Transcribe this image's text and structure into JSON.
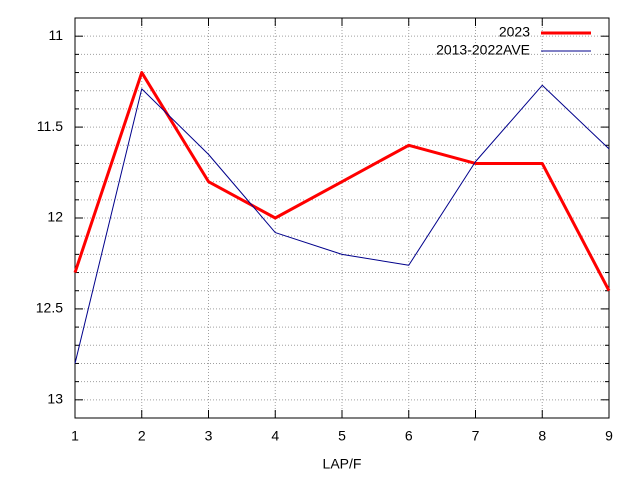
{
  "chart_data": {
    "type": "line",
    "xlabel": "LAP/F",
    "x": [
      1,
      2,
      3,
      4,
      5,
      6,
      7,
      8,
      9
    ],
    "series": [
      {
        "name": "2023",
        "color": "#ff0000",
        "values": [
          12.3,
          11.2,
          11.8,
          12.0,
          11.8,
          11.6,
          11.7,
          11.7,
          12.4
        ]
      },
      {
        "name": "2013-2022AVE",
        "color": "#00008b",
        "values": [
          12.8,
          11.29,
          11.65,
          12.08,
          12.2,
          12.26,
          11.69,
          11.27,
          11.62
        ]
      }
    ],
    "xlim": [
      1,
      9
    ],
    "xticks": [
      1,
      2,
      3,
      4,
      5,
      6,
      7,
      8,
      9
    ],
    "ylim": [
      13.1,
      10.9
    ],
    "yticks": [
      11,
      11.5,
      12,
      12.5,
      13
    ],
    "yminorticks": [
      11.1,
      11.2,
      11.3,
      11.4,
      11.6,
      11.7,
      11.8,
      11.9,
      12.1,
      12.2,
      12.3,
      12.4,
      12.6,
      12.7,
      12.8,
      12.9
    ],
    "grid": true,
    "legend": "top-right"
  }
}
